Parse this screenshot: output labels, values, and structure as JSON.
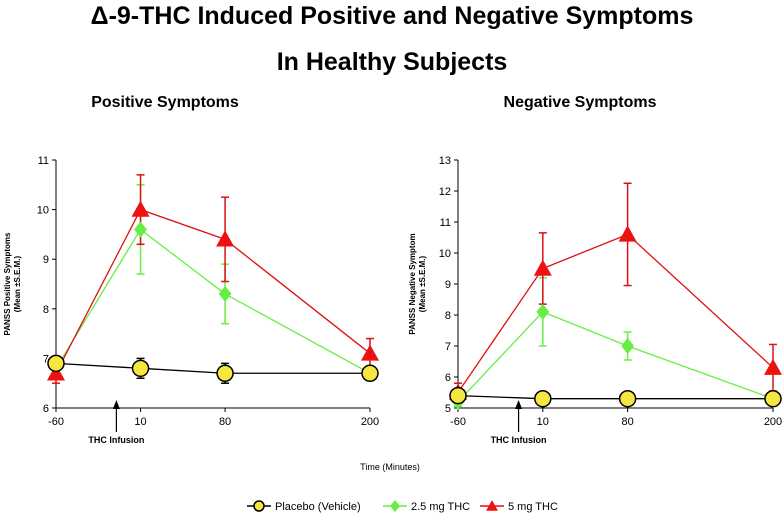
{
  "figure": {
    "title_line1": "Δ-9-THC Induced Positive and Negative Symptoms",
    "title_line2": "In Healthy Subjects",
    "xlabel": "Time (Minutes)",
    "annotation": "THC Infusion"
  },
  "legend": {
    "placement": "bottom-center",
    "entries": [
      "Placebo (Vehicle)",
      "2.5 mg THC",
      "5 mg THC"
    ]
  },
  "chart_data": [
    {
      "type": "line",
      "title": "Positive Symptoms",
      "ylabel": "PANSS Positive Symptoms (Mean ±S.E.M.)",
      "ylabel_lines": [
        "PANSS Positive Symptoms",
        "(Mean ±S.E.M.)"
      ],
      "xlabel": "Time (Minutes)",
      "categories": [
        "-60",
        "10",
        "80",
        "200"
      ],
      "x": [
        -60,
        10,
        80,
        200
      ],
      "xlim": [
        -60,
        200
      ],
      "ylim": [
        6,
        11
      ],
      "yticks": [
        6,
        7,
        8,
        9,
        10,
        11
      ],
      "annotation": {
        "text": "THC Infusion",
        "x": -10
      },
      "series": [
        {
          "name": "Placebo (Vehicle)",
          "values": [
            6.9,
            6.8,
            6.7,
            6.7
          ],
          "err": [
            0.12,
            0.2,
            0.2,
            0.1
          ],
          "marker": "circle",
          "line_color": "#000000",
          "fill": "#f5e642"
        },
        {
          "name": "2.5 mg THC",
          "values": [
            6.8,
            9.6,
            8.3,
            6.7
          ],
          "err": [
            0.2,
            0.9,
            0.6,
            0.15
          ],
          "marker": "diamond",
          "line_color": "#66ee44",
          "fill": "#66ee44"
        },
        {
          "name": "5 mg THC",
          "values": [
            6.7,
            10.0,
            9.4,
            7.1
          ],
          "err": [
            0.2,
            0.7,
            0.85,
            0.3
          ],
          "marker": "triangle",
          "line_color": "#dd1111",
          "fill": "#ee1111"
        }
      ]
    },
    {
      "type": "line",
      "title": "Negative Symptoms",
      "ylabel": "PANSS Negative Symptom (Mean ±S.E.M.)",
      "ylabel_lines": [
        "PANSS Negative Symptom",
        "(Mean ±S.E.M.)"
      ],
      "xlabel": "Time (Minutes)",
      "categories": [
        "-60",
        "10",
        "80",
        "200"
      ],
      "x": [
        -60,
        10,
        80,
        200
      ],
      "xlim": [
        -60,
        200
      ],
      "ylim": [
        5,
        13
      ],
      "yticks": [
        5,
        6,
        7,
        8,
        9,
        10,
        11,
        12,
        13
      ],
      "annotation": {
        "text": "THC Infusion",
        "x": -10
      },
      "series": [
        {
          "name": "Placebo (Vehicle)",
          "values": [
            5.4,
            5.3,
            5.3,
            5.3
          ],
          "err": [
            0.1,
            0.1,
            0.1,
            0.1
          ],
          "marker": "circle",
          "line_color": "#000000",
          "fill": "#f5e642"
        },
        {
          "name": "2.5 mg THC",
          "values": [
            5.2,
            8.1,
            7.0,
            5.3
          ],
          "err": [
            0.15,
            1.1,
            0.45,
            0.1
          ],
          "marker": "diamond",
          "line_color": "#66ee44",
          "fill": "#66ee44"
        },
        {
          "name": "5 mg THC",
          "values": [
            5.5,
            9.5,
            10.6,
            6.3
          ],
          "err": [
            0.3,
            1.15,
            1.65,
            0.75
          ],
          "marker": "triangle",
          "line_color": "#dd1111",
          "fill": "#ee1111"
        }
      ]
    }
  ]
}
